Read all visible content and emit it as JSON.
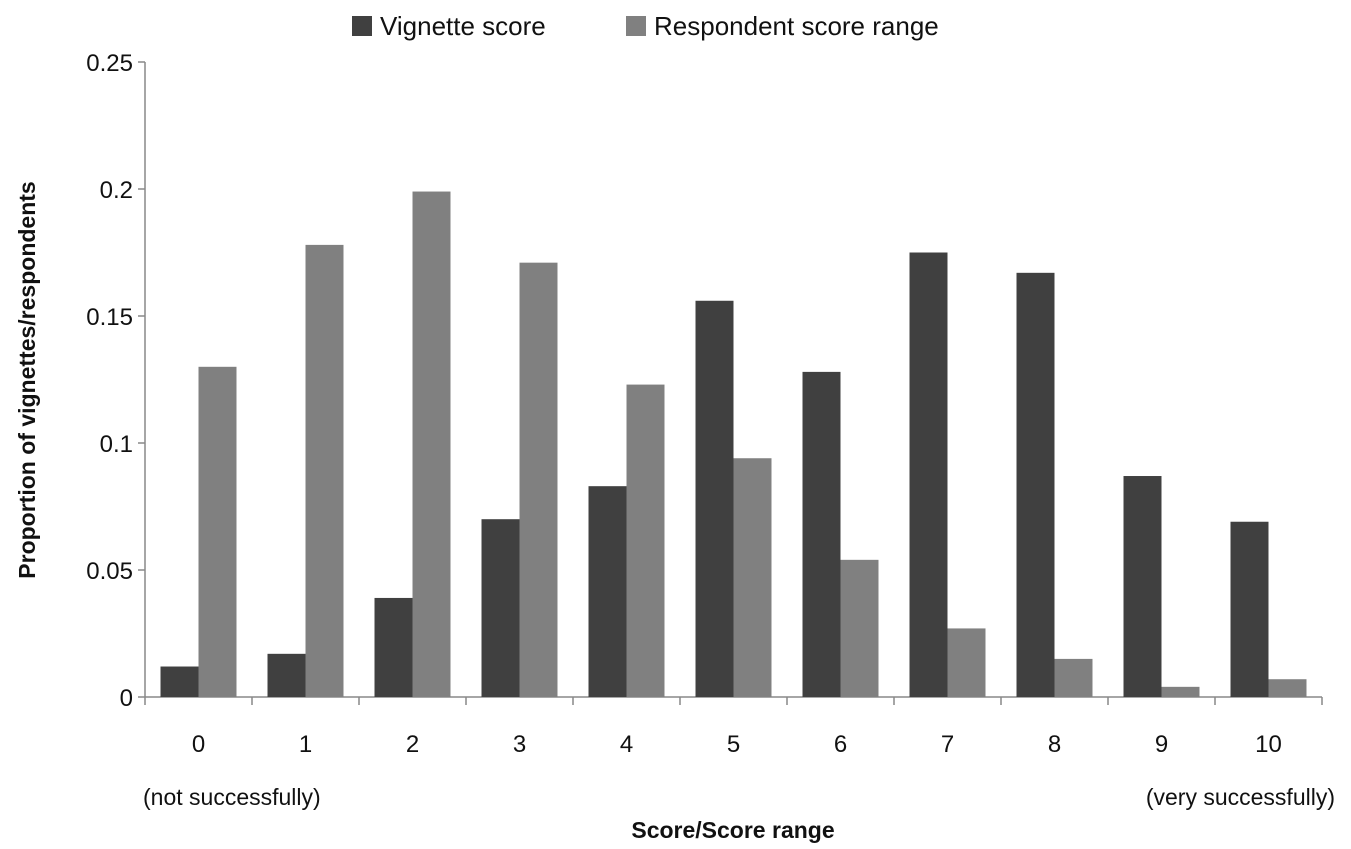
{
  "chart_data": {
    "type": "bar",
    "title": "",
    "xlabel": "Score/Score range",
    "ylabel": "Proportion of vignettes/respondents",
    "categories": [
      "0",
      "1",
      "2",
      "3",
      "4",
      "5",
      "6",
      "7",
      "8",
      "9",
      "10"
    ],
    "series": [
      {
        "name": "Vignette score",
        "color": "#404040",
        "values": [
          0.012,
          0.017,
          0.039,
          0.07,
          0.083,
          0.156,
          0.128,
          0.175,
          0.167,
          0.087,
          0.069
        ]
      },
      {
        "name": "Respondent score range",
        "color": "#808080",
        "values": [
          0.13,
          0.178,
          0.199,
          0.171,
          0.123,
          0.094,
          0.054,
          0.027,
          0.015,
          0.004,
          0.007
        ]
      }
    ],
    "ylim": [
      0,
      0.25
    ],
    "yticks": [
      "0",
      "0.05",
      "0.1",
      "0.15",
      "0.2",
      "0.25"
    ],
    "grid": false,
    "legend_position": "top",
    "annotations": {
      "low_end": "(not successfully)",
      "high_end": "(very successfully)"
    }
  }
}
